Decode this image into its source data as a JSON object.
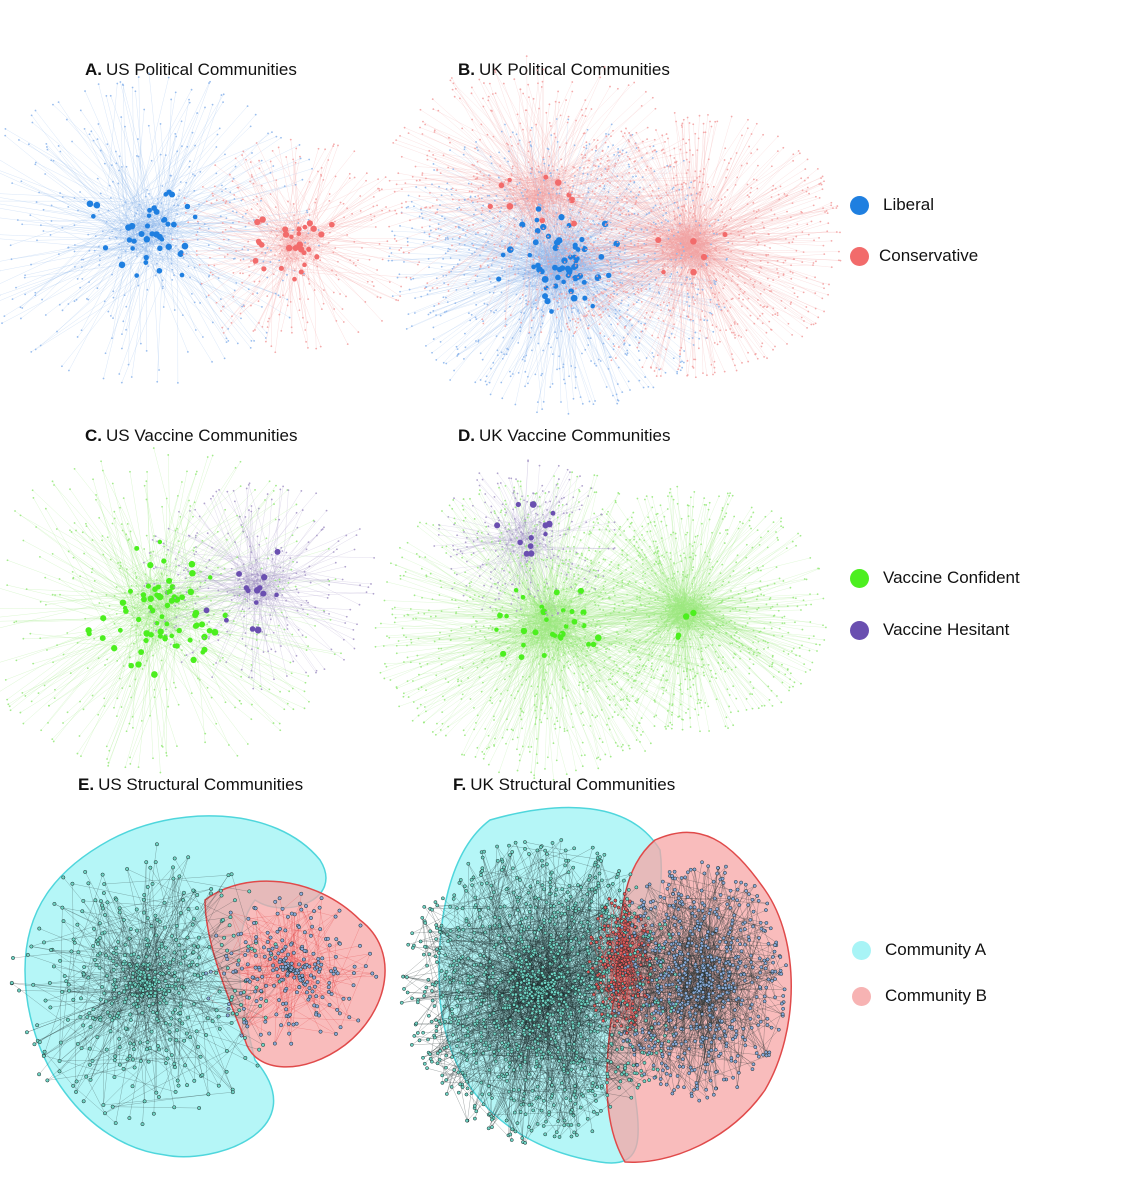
{
  "panels": [
    {
      "letter": "A.",
      "title": "US Political Communities"
    },
    {
      "letter": "B.",
      "title": "UK Political Communities"
    },
    {
      "letter": "C.",
      "title": "US Vaccine Communities"
    },
    {
      "letter": "D.",
      "title": "UK Vaccine Communities"
    },
    {
      "letter": "E.",
      "title": "US Structural Communities"
    },
    {
      "letter": "F.",
      "title": "UK Structural Communities"
    }
  ],
  "legends": {
    "political": [
      {
        "label": "Liberal",
        "color": "#1f7fe0"
      },
      {
        "label": "Conservative",
        "color": "#f26b6b"
      }
    ],
    "vaccine": [
      {
        "label": "Vaccine Confident",
        "color": "#4cef1f"
      },
      {
        "label": "Vaccine Hesitant",
        "color": "#6a4fb0"
      }
    ],
    "structural": [
      {
        "label": "Community A",
        "color": "#a8f4f6"
      },
      {
        "label": "Community B",
        "color": "#f7b3b3"
      }
    ]
  },
  "colors": {
    "liberal_edge": "#8fb7ec",
    "conservative_edge": "#f3a2a2",
    "confident_edge": "#9ae97f",
    "hesitant_edge": "#a99ac9",
    "hull_a_fill": "#a8f4f6",
    "hull_a_stroke": "#4fd6dc",
    "hull_b_fill": "#f7a5a5",
    "hull_b_stroke": "#e04a4a",
    "node_dark": "#1b2b2b",
    "node_teal": "#6fd3c3",
    "node_blue": "#8aa9d8"
  }
}
